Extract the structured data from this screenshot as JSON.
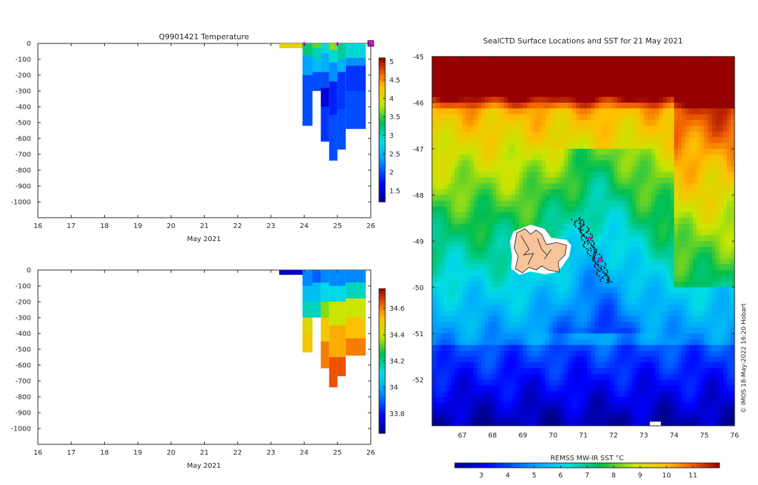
{
  "chart_data": [
    {
      "type": "heatmap",
      "title": "Q9901421  Temperature",
      "xlabel": "May 2021",
      "ylabel": "",
      "xlim": [
        16,
        26
      ],
      "ylim": [
        -1100,
        0
      ],
      "x_ticks": [
        "16",
        "17",
        "18",
        "19",
        "20",
        "21",
        "22",
        "23",
        "24",
        "25",
        "26"
      ],
      "y_ticks": [
        "0",
        "-100",
        "-200",
        "-300",
        "-400",
        "-500",
        "-600",
        "-700",
        "-800",
        "-900",
        "-1000"
      ],
      "colorbar": {
        "min": 1.2,
        "max": 5.1,
        "ticks": [
          "1.5",
          "2",
          "2.5",
          "3",
          "3.5",
          "4",
          "4.5",
          "5"
        ],
        "tick_values": [
          1.5,
          2,
          2.5,
          3,
          3.5,
          4,
          4.5,
          5
        ],
        "colormap": "jet"
      },
      "markers_at_surface": [
        24.0,
        25.0
      ],
      "profiles": [
        {
          "t0": 23.25,
          "t1": 23.95,
          "max_depth": 30,
          "layers": [
            [
              0,
              30,
              4.1
            ]
          ]
        },
        {
          "t0": 23.95,
          "t1": 24.25,
          "max_depth": 520,
          "layers": [
            [
              0,
              80,
              3.2
            ],
            [
              80,
              200,
              2.4
            ],
            [
              200,
              520,
              2.0
            ]
          ]
        },
        {
          "t0": 24.25,
          "t1": 24.5,
          "max_depth": 300,
          "layers": [
            [
              0,
              30,
              3.6
            ],
            [
              30,
              100,
              3.0
            ],
            [
              100,
              180,
              2.6
            ],
            [
              180,
              300,
              2.0
            ]
          ]
        },
        {
          "t0": 24.5,
          "t1": 24.75,
          "max_depth": 620,
          "layers": [
            [
              0,
              60,
              2.9
            ],
            [
              60,
              180,
              2.5
            ],
            [
              180,
              280,
              2.0
            ],
            [
              280,
              400,
              1.5
            ],
            [
              400,
              620,
              1.9
            ]
          ]
        },
        {
          "t0": 24.75,
          "t1": 25.0,
          "max_depth": 740,
          "layers": [
            [
              0,
              40,
              3.7
            ],
            [
              40,
              120,
              2.9
            ],
            [
              120,
              240,
              2.3
            ],
            [
              240,
              450,
              1.8
            ],
            [
              450,
              740,
              2.0
            ]
          ]
        },
        {
          "t0": 25.0,
          "t1": 25.25,
          "max_depth": 670,
          "layers": [
            [
              0,
              100,
              3.1
            ],
            [
              100,
              180,
              2.5
            ],
            [
              180,
              420,
              1.9
            ],
            [
              420,
              670,
              2.0
            ]
          ]
        },
        {
          "t0": 25.25,
          "t1": 25.85,
          "max_depth": 540,
          "layers": [
            [
              0,
              90,
              2.9
            ],
            [
              90,
              140,
              2.3
            ],
            [
              140,
              300,
              1.9
            ],
            [
              300,
              540,
              2.0
            ]
          ]
        }
      ]
    },
    {
      "type": "heatmap",
      "title": "",
      "xlabel": "May 2021",
      "ylabel": "",
      "xlim": [
        16,
        26
      ],
      "ylim": [
        -1100,
        0
      ],
      "x_ticks": [
        "16",
        "17",
        "18",
        "19",
        "20",
        "21",
        "22",
        "23",
        "24",
        "25",
        "26"
      ],
      "y_ticks": [
        "0",
        "-100",
        "-200",
        "-300",
        "-400",
        "-500",
        "-600",
        "-700",
        "-800",
        "-900",
        "-1000"
      ],
      "colorbar": {
        "min": 33.65,
        "max": 34.75,
        "ticks": [
          "33.8",
          "34",
          "34.2",
          "34.4",
          "34.6"
        ],
        "tick_values": [
          33.8,
          34.0,
          34.2,
          34.4,
          34.6
        ],
        "colormap": "jet"
      },
      "profiles": [
        {
          "t0": 23.25,
          "t1": 23.95,
          "max_depth": 30,
          "layers": [
            [
              0,
              30,
              33.72
            ]
          ]
        },
        {
          "t0": 23.95,
          "t1": 24.25,
          "max_depth": 520,
          "layers": [
            [
              0,
              100,
              33.95
            ],
            [
              100,
              200,
              34.05
            ],
            [
              200,
              300,
              34.15
            ],
            [
              300,
              400,
              34.45
            ],
            [
              400,
              520,
              34.5
            ]
          ]
        },
        {
          "t0": 24.25,
          "t1": 24.5,
          "max_depth": 300,
          "layers": [
            [
              0,
              80,
              33.9
            ],
            [
              80,
              200,
              34.05
            ],
            [
              200,
              300,
              34.15
            ]
          ]
        },
        {
          "t0": 24.5,
          "t1": 24.75,
          "max_depth": 620,
          "layers": [
            [
              0,
              80,
              33.95
            ],
            [
              80,
              200,
              34.1
            ],
            [
              200,
              300,
              34.35
            ],
            [
              300,
              450,
              34.5
            ],
            [
              450,
              620,
              34.6
            ]
          ]
        },
        {
          "t0": 24.75,
          "t1": 25.0,
          "max_depth": 740,
          "layers": [
            [
              0,
              100,
              33.95
            ],
            [
              100,
              200,
              34.1
            ],
            [
              200,
              350,
              34.4
            ],
            [
              350,
              550,
              34.55
            ],
            [
              550,
              740,
              34.65
            ]
          ]
        },
        {
          "t0": 25.0,
          "t1": 25.25,
          "max_depth": 670,
          "layers": [
            [
              0,
              100,
              33.95
            ],
            [
              100,
              200,
              34.1
            ],
            [
              200,
              350,
              34.4
            ],
            [
              350,
              550,
              34.55
            ],
            [
              550,
              670,
              34.65
            ]
          ]
        },
        {
          "t0": 25.25,
          "t1": 25.85,
          "max_depth": 540,
          "layers": [
            [
              0,
              80,
              33.95
            ],
            [
              80,
              180,
              34.15
            ],
            [
              180,
              300,
              34.4
            ],
            [
              300,
              430,
              34.52
            ],
            [
              430,
              540,
              34.6
            ]
          ]
        }
      ]
    },
    {
      "type": "heatmap",
      "title": "SealCTD Surface Locations and SST for 21 May 2021",
      "xlabel": "",
      "ylabel": "",
      "xlim": [
        66,
        76
      ],
      "ylim": [
        -53,
        -45
      ],
      "x_ticks": [
        "67",
        "68",
        "69",
        "70",
        "71",
        "72",
        "73",
        "74",
        "75",
        "76"
      ],
      "y_ticks": [
        "-45",
        "-46",
        "-47",
        "-48",
        "-49",
        "-50",
        "-51",
        "-52"
      ],
      "colorbar": {
        "label": "REMSS MW-IR SST °C",
        "min": 2,
        "max": 12,
        "ticks": [
          "3",
          "4",
          "5",
          "6",
          "7",
          "8",
          "9",
          "10",
          "11"
        ],
        "tick_values": [
          3,
          4,
          5,
          6,
          7,
          8,
          9,
          10,
          11
        ],
        "colormap": "jet"
      },
      "seal_track": {
        "lon_range": [
          70.8,
          71.8
        ],
        "lat_range": [
          -49.9,
          -48.5
        ]
      },
      "highlight_points": [
        {
          "lon": 71.2,
          "lat": -48.95
        },
        {
          "lon": 71.55,
          "lat": -49.4
        }
      ],
      "credit": "© IMOS 18-May-2022 16:20 Hobart"
    }
  ]
}
